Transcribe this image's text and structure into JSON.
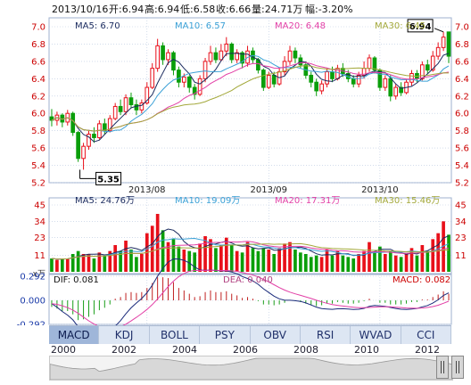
{
  "header": {
    "date": "2013/10/16",
    "open": "开:6.94",
    "high": "高:6.94",
    "low": "低:6.58",
    "close": "收:6.66",
    "volume": "量:24.71万",
    "change": "幅:-3.20%"
  },
  "price_panel": {
    "ma_labels": [
      "MA5: 6.70",
      "MA10: 6.57",
      "MA20: 6.48",
      "MA30: 6.45"
    ],
    "y_ticks": [
      "7.0",
      "6.8",
      "6.6",
      "6.4",
      "6.2",
      "6.0",
      "5.8",
      "5.6",
      "5.4",
      "5.2"
    ],
    "x_ticks": [
      "2013/08",
      "2013/09",
      "2013/10"
    ],
    "max_callout": "6.94",
    "min_callout": "5.35"
  },
  "volume_panel": {
    "ma_labels": [
      "MA5: 24.76万",
      "MA10: 19.09万",
      "MA20: 17.31万",
      "MA30: 15.46万"
    ],
    "y_ticks": [
      "45",
      "34",
      "23",
      "11"
    ],
    "unit": "x万"
  },
  "macd_panel": {
    "labels": [
      "DIF: 0.081",
      "DEA: 0.040",
      "MACD: 0.082"
    ],
    "y_ticks": [
      "0.292",
      "0.000",
      "-0.292"
    ]
  },
  "tabs": [
    "MACD",
    "KDJ",
    "BOLL",
    "PSY",
    "OBV",
    "RSI",
    "WVAD",
    "CCI"
  ],
  "active_tab": "MACD",
  "timeline_years": [
    "2000",
    "2002",
    "2004",
    "2006",
    "2008",
    "2010",
    "2012"
  ],
  "colors": {
    "up": "#e8101a",
    "down": "#0a9e0a",
    "ma5": "#1a2a5e",
    "ma10": "#3aa0d6",
    "ma20": "#e23fa6",
    "ma30": "#a3a83a",
    "grid": "#b8c7df"
  },
  "chart_data": {
    "type": "candlestick",
    "ylim": [
      5.2,
      7.0
    ],
    "volume_ylim": [
      0,
      45
    ],
    "macd_ylim": [
      -0.292,
      0.292
    ],
    "candles": [
      {
        "o": 5.96,
        "c": 5.92,
        "h": 6.05,
        "l": 5.85,
        "v": 9
      },
      {
        "o": 5.92,
        "c": 5.98,
        "h": 6.02,
        "l": 5.86,
        "v": 8
      },
      {
        "o": 5.98,
        "c": 5.9,
        "h": 6.0,
        "l": 5.84,
        "v": 9
      },
      {
        "o": 5.9,
        "c": 6.0,
        "h": 6.04,
        "l": 5.86,
        "v": 9
      },
      {
        "o": 6.0,
        "c": 5.78,
        "h": 6.02,
        "l": 5.74,
        "v": 12
      },
      {
        "o": 5.78,
        "c": 5.48,
        "h": 5.8,
        "l": 5.44,
        "v": 14
      },
      {
        "o": 5.48,
        "c": 5.62,
        "h": 5.66,
        "l": 5.35,
        "v": 12
      },
      {
        "o": 5.62,
        "c": 5.76,
        "h": 5.8,
        "l": 5.58,
        "v": 12
      },
      {
        "o": 5.76,
        "c": 5.72,
        "h": 5.84,
        "l": 5.66,
        "v": 9
      },
      {
        "o": 5.72,
        "c": 5.88,
        "h": 5.92,
        "l": 5.7,
        "v": 13
      },
      {
        "o": 5.88,
        "c": 5.8,
        "h": 5.94,
        "l": 5.76,
        "v": 11
      },
      {
        "o": 5.8,
        "c": 5.94,
        "h": 5.98,
        "l": 5.78,
        "v": 14
      },
      {
        "o": 5.94,
        "c": 6.08,
        "h": 6.12,
        "l": 5.92,
        "v": 18
      },
      {
        "o": 6.08,
        "c": 6.02,
        "h": 6.16,
        "l": 5.98,
        "v": 14
      },
      {
        "o": 6.02,
        "c": 6.18,
        "h": 6.22,
        "l": 5.98,
        "v": 21
      },
      {
        "o": 6.18,
        "c": 6.1,
        "h": 6.24,
        "l": 6.06,
        "v": 15
      },
      {
        "o": 6.1,
        "c": 6.04,
        "h": 6.16,
        "l": 5.98,
        "v": 10
      },
      {
        "o": 6.04,
        "c": 6.12,
        "h": 6.16,
        "l": 6.0,
        "v": 12
      },
      {
        "o": 6.12,
        "c": 6.3,
        "h": 6.36,
        "l": 6.1,
        "v": 26
      },
      {
        "o": 6.3,
        "c": 6.52,
        "h": 6.58,
        "l": 6.28,
        "v": 31
      },
      {
        "o": 6.52,
        "c": 6.78,
        "h": 6.86,
        "l": 6.48,
        "v": 39
      },
      {
        "o": 6.78,
        "c": 6.62,
        "h": 6.82,
        "l": 6.56,
        "v": 28
      },
      {
        "o": 6.62,
        "c": 6.7,
        "h": 6.74,
        "l": 6.56,
        "v": 20
      },
      {
        "o": 6.7,
        "c": 6.5,
        "h": 6.72,
        "l": 6.44,
        "v": 22
      },
      {
        "o": 6.5,
        "c": 6.36,
        "h": 6.54,
        "l": 6.3,
        "v": 17
      },
      {
        "o": 6.36,
        "c": 6.42,
        "h": 6.46,
        "l": 6.3,
        "v": 15
      },
      {
        "o": 6.42,
        "c": 6.3,
        "h": 6.44,
        "l": 6.24,
        "v": 14
      },
      {
        "o": 6.3,
        "c": 6.22,
        "h": 6.34,
        "l": 6.16,
        "v": 13
      },
      {
        "o": 6.22,
        "c": 6.4,
        "h": 6.44,
        "l": 6.2,
        "v": 19
      },
      {
        "o": 6.4,
        "c": 6.6,
        "h": 6.64,
        "l": 6.36,
        "v": 24
      },
      {
        "o": 6.6,
        "c": 6.7,
        "h": 6.78,
        "l": 6.56,
        "v": 22
      },
      {
        "o": 6.7,
        "c": 6.62,
        "h": 6.76,
        "l": 6.58,
        "v": 16
      },
      {
        "o": 6.62,
        "c": 6.72,
        "h": 6.8,
        "l": 6.6,
        "v": 18
      },
      {
        "o": 6.72,
        "c": 6.8,
        "h": 6.88,
        "l": 6.66,
        "v": 23
      },
      {
        "o": 6.8,
        "c": 6.62,
        "h": 6.82,
        "l": 6.58,
        "v": 18
      },
      {
        "o": 6.62,
        "c": 6.7,
        "h": 6.74,
        "l": 6.58,
        "v": 14
      },
      {
        "o": 6.7,
        "c": 6.58,
        "h": 6.72,
        "l": 6.52,
        "v": 13
      },
      {
        "o": 6.58,
        "c": 6.72,
        "h": 6.78,
        "l": 6.54,
        "v": 20
      },
      {
        "o": 6.72,
        "c": 6.62,
        "h": 6.76,
        "l": 6.58,
        "v": 16
      },
      {
        "o": 6.62,
        "c": 6.5,
        "h": 6.64,
        "l": 6.46,
        "v": 14
      },
      {
        "o": 6.5,
        "c": 6.3,
        "h": 6.52,
        "l": 6.26,
        "v": 16
      },
      {
        "o": 6.3,
        "c": 6.44,
        "h": 6.48,
        "l": 6.28,
        "v": 15
      },
      {
        "o": 6.44,
        "c": 6.34,
        "h": 6.48,
        "l": 6.3,
        "v": 12
      },
      {
        "o": 6.34,
        "c": 6.48,
        "h": 6.52,
        "l": 6.32,
        "v": 16
      },
      {
        "o": 6.48,
        "c": 6.6,
        "h": 6.66,
        "l": 6.44,
        "v": 19
      },
      {
        "o": 6.6,
        "c": 6.72,
        "h": 6.78,
        "l": 6.56,
        "v": 20
      },
      {
        "o": 6.72,
        "c": 6.64,
        "h": 6.76,
        "l": 6.58,
        "v": 15
      },
      {
        "o": 6.64,
        "c": 6.56,
        "h": 6.68,
        "l": 6.52,
        "v": 13
      },
      {
        "o": 6.56,
        "c": 6.44,
        "h": 6.6,
        "l": 6.4,
        "v": 12
      },
      {
        "o": 6.44,
        "c": 6.36,
        "h": 6.48,
        "l": 6.3,
        "v": 10
      },
      {
        "o": 6.36,
        "c": 6.26,
        "h": 6.4,
        "l": 6.2,
        "v": 11
      },
      {
        "o": 6.26,
        "c": 6.34,
        "h": 6.38,
        "l": 6.22,
        "v": 10
      },
      {
        "o": 6.34,
        "c": 6.48,
        "h": 6.52,
        "l": 6.3,
        "v": 15
      },
      {
        "o": 6.48,
        "c": 6.4,
        "h": 6.54,
        "l": 6.36,
        "v": 11
      },
      {
        "o": 6.4,
        "c": 6.52,
        "h": 6.56,
        "l": 6.38,
        "v": 14
      },
      {
        "o": 6.52,
        "c": 6.46,
        "h": 6.58,
        "l": 6.42,
        "v": 11
      },
      {
        "o": 6.46,
        "c": 6.4,
        "h": 6.5,
        "l": 6.36,
        "v": 10
      },
      {
        "o": 6.4,
        "c": 6.34,
        "h": 6.44,
        "l": 6.3,
        "v": 9
      },
      {
        "o": 6.34,
        "c": 6.44,
        "h": 6.48,
        "l": 6.3,
        "v": 12
      },
      {
        "o": 6.44,
        "c": 6.52,
        "h": 6.6,
        "l": 6.4,
        "v": 14
      },
      {
        "o": 6.52,
        "c": 6.64,
        "h": 6.68,
        "l": 6.48,
        "v": 20
      },
      {
        "o": 6.64,
        "c": 6.5,
        "h": 6.66,
        "l": 6.46,
        "v": 13
      },
      {
        "o": 6.5,
        "c": 6.3,
        "h": 6.52,
        "l": 6.26,
        "v": 17
      },
      {
        "o": 6.3,
        "c": 6.4,
        "h": 6.44,
        "l": 6.26,
        "v": 12
      },
      {
        "o": 6.4,
        "c": 6.2,
        "h": 6.44,
        "l": 6.14,
        "v": 14
      },
      {
        "o": 6.2,
        "c": 6.3,
        "h": 6.34,
        "l": 6.16,
        "v": 11
      },
      {
        "o": 6.3,
        "c": 6.24,
        "h": 6.36,
        "l": 6.2,
        "v": 10
      },
      {
        "o": 6.24,
        "c": 6.36,
        "h": 6.4,
        "l": 6.22,
        "v": 12
      },
      {
        "o": 6.36,
        "c": 6.46,
        "h": 6.5,
        "l": 6.32,
        "v": 16
      },
      {
        "o": 6.46,
        "c": 6.4,
        "h": 6.5,
        "l": 6.36,
        "v": 11
      },
      {
        "o": 6.4,
        "c": 6.56,
        "h": 6.6,
        "l": 6.38,
        "v": 18
      },
      {
        "o": 6.56,
        "c": 6.5,
        "h": 6.62,
        "l": 6.46,
        "v": 14
      },
      {
        "o": 6.5,
        "c": 6.66,
        "h": 6.72,
        "l": 6.48,
        "v": 22
      },
      {
        "o": 6.66,
        "c": 6.76,
        "h": 6.82,
        "l": 6.62,
        "v": 26
      },
      {
        "o": 6.76,
        "c": 6.88,
        "h": 6.94,
        "l": 6.72,
        "v": 34
      },
      {
        "o": 6.94,
        "c": 6.66,
        "h": 6.94,
        "l": 6.58,
        "v": 25
      }
    ],
    "macd_hist": [
      -0.08,
      -0.1,
      -0.13,
      -0.13,
      -0.17,
      -0.24,
      -0.23,
      -0.2,
      -0.17,
      -0.12,
      -0.09,
      -0.05,
      0.02,
      0.04,
      0.09,
      0.1,
      0.09,
      0.1,
      0.15,
      0.21,
      0.28,
      0.28,
      0.27,
      0.22,
      0.15,
      0.12,
      0.08,
      0.04,
      0.05,
      0.1,
      0.12,
      0.1,
      0.1,
      0.11,
      0.08,
      0.06,
      0.03,
      0.04,
      0.02,
      -0.01,
      -0.05,
      -0.05,
      -0.06,
      -0.05,
      -0.03,
      0.0,
      -0.01,
      -0.02,
      -0.04,
      -0.06,
      -0.07,
      -0.06,
      -0.04,
      -0.04,
      -0.02,
      -0.03,
      -0.04,
      -0.04,
      -0.03,
      -0.01,
      0.02,
      0.0,
      -0.03,
      -0.03,
      -0.05,
      -0.05,
      -0.05,
      -0.04,
      -0.02,
      -0.02,
      0.01,
      0.01,
      0.04,
      0.07,
      0.11,
      0.08
    ]
  }
}
